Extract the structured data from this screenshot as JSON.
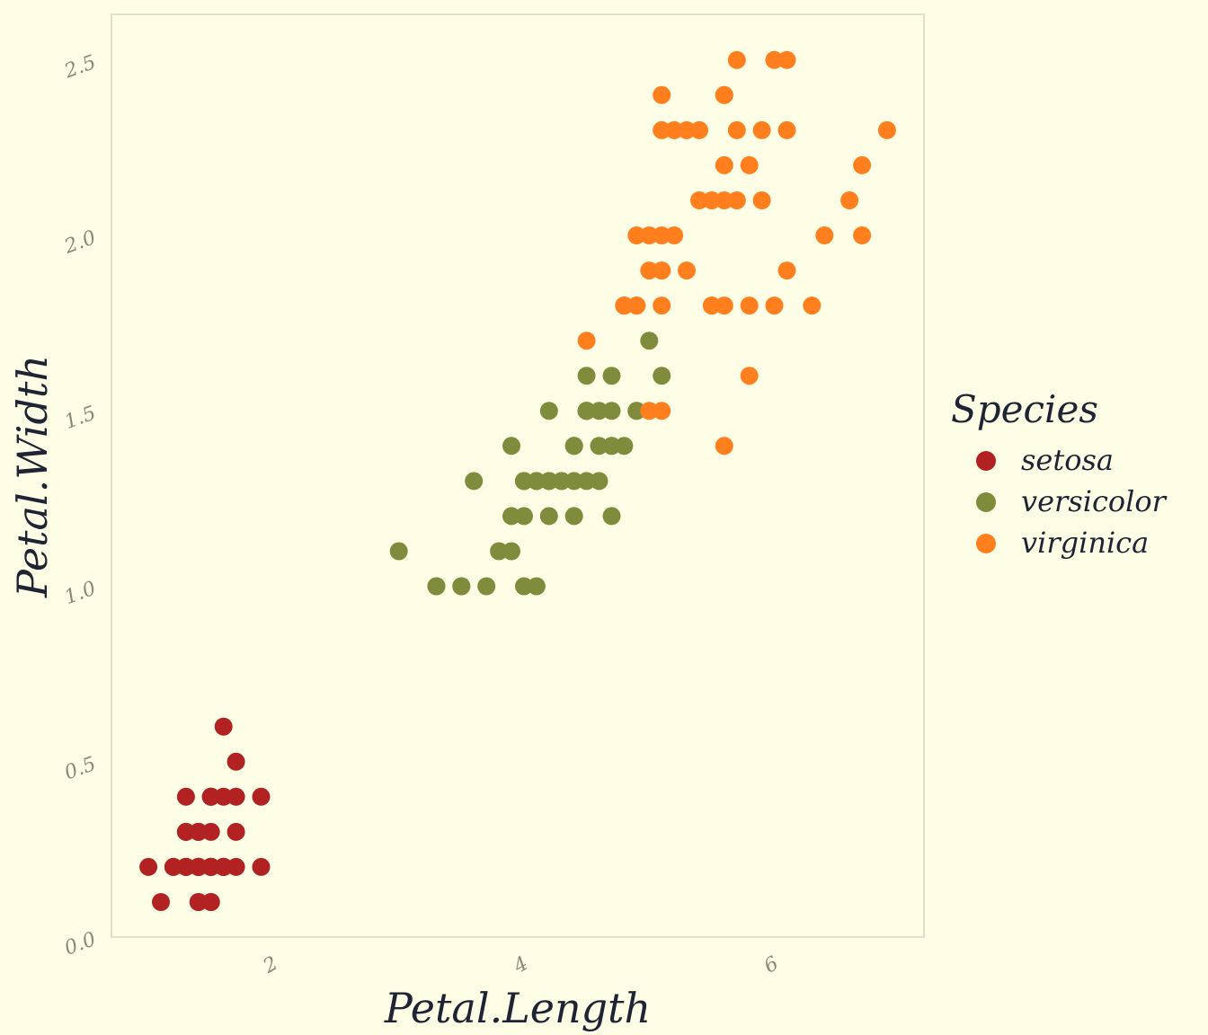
{
  "chart_data": {
    "type": "scatter",
    "title": "",
    "xlabel": "Petal.Length",
    "ylabel": "Petal.Width",
    "xlim": [
      0.705,
      7.195
    ],
    "ylim": [
      0.0,
      2.63
    ],
    "xticks": [
      "2",
      "4",
      "6"
    ],
    "yticks": [
      "0.0",
      "0.5",
      "1.0",
      "1.5",
      "2.0",
      "2.5"
    ],
    "legend": {
      "title": "Species",
      "placement": "right"
    },
    "series": [
      {
        "name": "setosa",
        "color": "#b22222",
        "points": [
          [
            1.4,
            0.2
          ],
          [
            1.4,
            0.2
          ],
          [
            1.3,
            0.2
          ],
          [
            1.5,
            0.2
          ],
          [
            1.4,
            0.2
          ],
          [
            1.7,
            0.4
          ],
          [
            1.4,
            0.3
          ],
          [
            1.5,
            0.2
          ],
          [
            1.4,
            0.2
          ],
          [
            1.5,
            0.1
          ],
          [
            1.5,
            0.2
          ],
          [
            1.6,
            0.2
          ],
          [
            1.4,
            0.1
          ],
          [
            1.1,
            0.1
          ],
          [
            1.2,
            0.2
          ],
          [
            1.5,
            0.4
          ],
          [
            1.3,
            0.4
          ],
          [
            1.4,
            0.3
          ],
          [
            1.7,
            0.3
          ],
          [
            1.5,
            0.3
          ],
          [
            1.7,
            0.2
          ],
          [
            1.5,
            0.4
          ],
          [
            1.0,
            0.2
          ],
          [
            1.7,
            0.5
          ],
          [
            1.9,
            0.2
          ],
          [
            1.6,
            0.2
          ],
          [
            1.6,
            0.4
          ],
          [
            1.5,
            0.2
          ],
          [
            1.4,
            0.2
          ],
          [
            1.6,
            0.2
          ],
          [
            1.6,
            0.2
          ],
          [
            1.5,
            0.4
          ],
          [
            1.5,
            0.1
          ],
          [
            1.4,
            0.2
          ],
          [
            1.5,
            0.2
          ],
          [
            1.2,
            0.2
          ],
          [
            1.3,
            0.2
          ],
          [
            1.4,
            0.1
          ],
          [
            1.3,
            0.2
          ],
          [
            1.5,
            0.2
          ],
          [
            1.3,
            0.3
          ],
          [
            1.3,
            0.3
          ],
          [
            1.3,
            0.2
          ],
          [
            1.6,
            0.6
          ],
          [
            1.9,
            0.4
          ],
          [
            1.4,
            0.3
          ],
          [
            1.6,
            0.2
          ],
          [
            1.4,
            0.2
          ],
          [
            1.5,
            0.2
          ],
          [
            1.4,
            0.2
          ]
        ]
      },
      {
        "name": "versicolor",
        "color": "#7f8c3c",
        "points": [
          [
            4.7,
            1.4
          ],
          [
            4.5,
            1.5
          ],
          [
            4.9,
            1.5
          ],
          [
            4.0,
            1.3
          ],
          [
            4.6,
            1.5
          ],
          [
            4.5,
            1.3
          ],
          [
            4.7,
            1.6
          ],
          [
            3.3,
            1.0
          ],
          [
            4.6,
            1.3
          ],
          [
            3.9,
            1.4
          ],
          [
            3.5,
            1.0
          ],
          [
            4.2,
            1.5
          ],
          [
            4.0,
            1.0
          ],
          [
            4.7,
            1.4
          ],
          [
            3.6,
            1.3
          ],
          [
            4.4,
            1.4
          ],
          [
            4.5,
            1.5
          ],
          [
            4.1,
            1.0
          ],
          [
            4.5,
            1.5
          ],
          [
            3.9,
            1.1
          ],
          [
            4.8,
            1.8
          ],
          [
            4.0,
            1.3
          ],
          [
            4.9,
            1.5
          ],
          [
            4.7,
            1.2
          ],
          [
            4.3,
            1.3
          ],
          [
            4.4,
            1.4
          ],
          [
            4.8,
            1.4
          ],
          [
            5.0,
            1.7
          ],
          [
            4.5,
            1.5
          ],
          [
            3.5,
            1.0
          ],
          [
            3.8,
            1.1
          ],
          [
            3.7,
            1.0
          ],
          [
            3.9,
            1.2
          ],
          [
            5.1,
            1.6
          ],
          [
            4.5,
            1.5
          ],
          [
            4.5,
            1.6
          ],
          [
            4.7,
            1.5
          ],
          [
            4.4,
            1.3
          ],
          [
            4.1,
            1.3
          ],
          [
            4.0,
            1.3
          ],
          [
            4.4,
            1.2
          ],
          [
            4.6,
            1.4
          ],
          [
            4.0,
            1.2
          ],
          [
            3.3,
            1.0
          ],
          [
            4.2,
            1.3
          ],
          [
            4.2,
            1.2
          ],
          [
            4.2,
            1.3
          ],
          [
            4.3,
            1.3
          ],
          [
            3.0,
            1.1
          ],
          [
            4.1,
            1.3
          ]
        ]
      },
      {
        "name": "virginica",
        "color": "#ff7f1e",
        "points": [
          [
            6.0,
            2.5
          ],
          [
            5.1,
            1.9
          ],
          [
            5.9,
            2.1
          ],
          [
            5.6,
            1.8
          ],
          [
            5.8,
            2.2
          ],
          [
            6.6,
            2.1
          ],
          [
            4.5,
            1.7
          ],
          [
            6.3,
            1.8
          ],
          [
            5.8,
            1.8
          ],
          [
            6.1,
            2.5
          ],
          [
            5.1,
            2.0
          ],
          [
            5.3,
            1.9
          ],
          [
            5.5,
            2.1
          ],
          [
            5.0,
            2.0
          ],
          [
            5.1,
            2.4
          ],
          [
            5.3,
            2.3
          ],
          [
            5.5,
            1.8
          ],
          [
            6.7,
            2.2
          ],
          [
            6.9,
            2.3
          ],
          [
            5.0,
            1.5
          ],
          [
            5.7,
            2.3
          ],
          [
            4.9,
            2.0
          ],
          [
            6.7,
            2.0
          ],
          [
            4.9,
            1.8
          ],
          [
            5.7,
            2.1
          ],
          [
            6.0,
            1.8
          ],
          [
            4.8,
            1.8
          ],
          [
            4.9,
            1.8
          ],
          [
            5.6,
            2.1
          ],
          [
            5.8,
            1.6
          ],
          [
            6.1,
            1.9
          ],
          [
            6.4,
            2.0
          ],
          [
            5.6,
            2.2
          ],
          [
            5.1,
            1.5
          ],
          [
            5.6,
            1.4
          ],
          [
            6.1,
            2.3
          ],
          [
            5.6,
            2.4
          ],
          [
            5.5,
            1.8
          ],
          [
            4.8,
            1.8
          ],
          [
            5.4,
            2.1
          ],
          [
            5.6,
            2.4
          ],
          [
            5.1,
            2.3
          ],
          [
            5.1,
            1.9
          ],
          [
            5.9,
            2.3
          ],
          [
            5.7,
            2.5
          ],
          [
            5.2,
            2.3
          ],
          [
            5.0,
            1.9
          ],
          [
            5.2,
            2.0
          ],
          [
            5.4,
            2.3
          ],
          [
            5.1,
            1.8
          ]
        ]
      }
    ]
  }
}
